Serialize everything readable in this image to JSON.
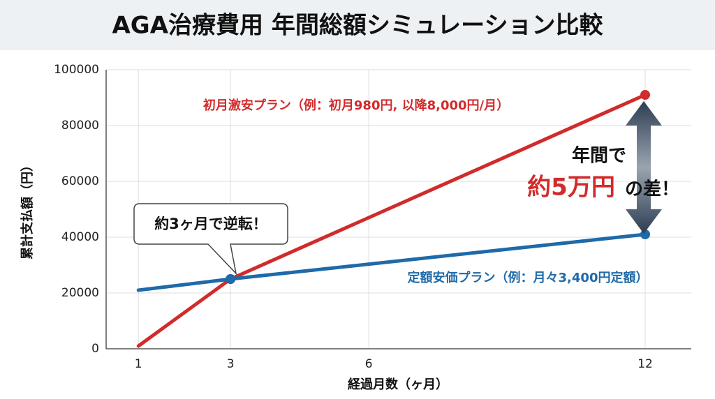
{
  "chart_data": {
    "type": "line",
    "title": "AGA治療費用 年間総額シミュレーション比較",
    "x_label": "経過月数（ヶ月）",
    "y_label": "累計支払額（円）",
    "x": [
      1,
      3,
      12
    ],
    "series": [
      {
        "name": "初月激安プラン（例：初月980円, 以降8,000円/月）",
        "color": "#d12b2b",
        "values": [
          980,
          25000,
          91000
        ]
      },
      {
        "name": "定額安価プラン（例：月々3,400円定額）",
        "color": "#1f6aa8",
        "values": [
          21000,
          25000,
          41000
        ]
      }
    ],
    "xlim": [
      0.3,
      13
    ],
    "xticks": [
      1,
      3,
      6,
      12
    ],
    "ylim": [
      0,
      100000
    ],
    "yticks": [
      0,
      20000,
      40000,
      60000,
      80000,
      100000
    ],
    "grid": true,
    "annotations": [
      "約3ヶ月で逆転！",
      "年間で",
      "約5万円",
      "の差！"
    ]
  }
}
